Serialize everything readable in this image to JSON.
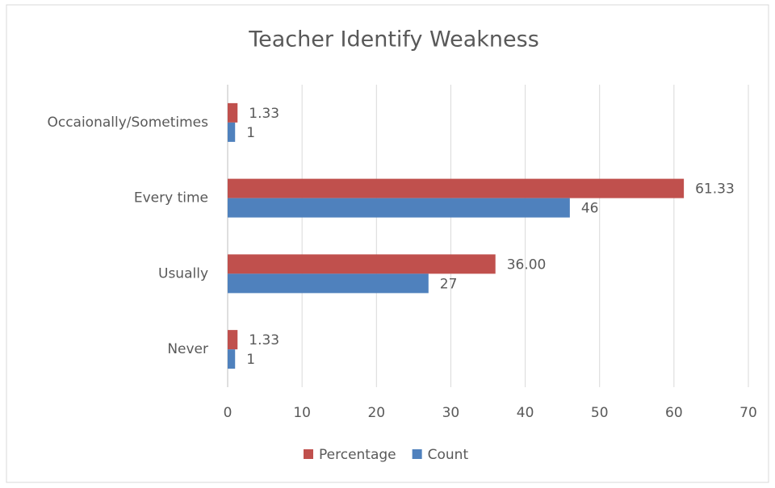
{
  "chart_data": {
    "type": "bar",
    "orientation": "horizontal",
    "title": "Teacher Identify Weakness",
    "categories": [
      "Occaionally/Sometimes",
      "Every time",
      "Usually",
      "Never"
    ],
    "series": [
      {
        "name": "Percentage",
        "color": "#c0504d",
        "values": [
          1.33,
          61.33,
          36,
          1.33
        ],
        "value_labels": [
          "1.33",
          "61.33",
          "36.00",
          "1.33"
        ]
      },
      {
        "name": "Count",
        "color": "#4f81bd",
        "values": [
          1,
          46,
          27,
          1
        ]
      }
    ],
    "xlim": [
      0,
      70
    ],
    "xticks": [
      0,
      10,
      20,
      30,
      40,
      50,
      60,
      70
    ],
    "grid": true,
    "legend": "bottom"
  }
}
